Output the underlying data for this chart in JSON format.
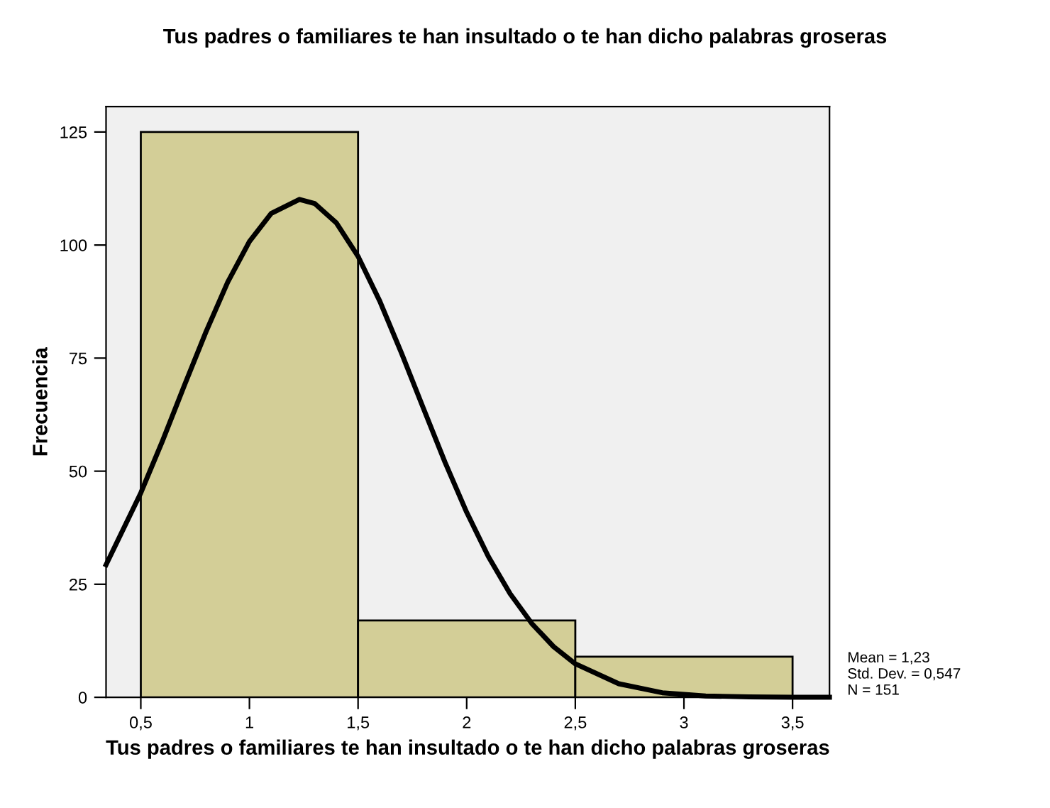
{
  "chart_data": {
    "type": "histogram",
    "title": "Tus padres o familiares te han insultado o te han dicho palabras groseras",
    "xlabel": "Tus padres o familiares te han insultado o te han dicho palabras groseras",
    "ylabel": "Frecuencia",
    "series": [
      {
        "bins": [
          0.5,
          1.5,
          2.5,
          3.5
        ],
        "values": [
          125,
          17,
          9
        ],
        "color": "#d3ce97"
      },
      {
        "type": "line",
        "color": "#000000",
        "x": [
          0.34,
          0.5,
          0.6,
          0.7,
          0.8,
          0.9,
          1.0,
          1.1,
          1.23,
          1.3,
          1.4,
          1.5,
          1.6,
          1.7,
          1.8,
          1.9,
          2.0,
          2.1,
          2.2,
          2.3,
          2.4,
          2.5,
          2.7,
          2.9,
          3.1,
          3.3,
          3.5,
          3.67
        ],
        "values": [
          29.3,
          45.2,
          56.7,
          68.9,
          80.8,
          91.8,
          100.8,
          107.0,
          110.1,
          109.2,
          104.9,
          97.5,
          87.6,
          76.1,
          64.0,
          52.0,
          40.9,
          31.1,
          22.9,
          16.3,
          11.2,
          7.4,
          3.0,
          1.0,
          0.3,
          0.1,
          0,
          0
        ]
      }
    ],
    "xlim": [
      0.34,
      3.67
    ],
    "ylim": [
      0,
      130.6
    ],
    "xticks": [
      {
        "value": 0.5,
        "label": "0,5"
      },
      1,
      {
        "value": 1.5,
        "label": "1,5"
      },
      2,
      {
        "value": 2.5,
        "label": "2,5"
      },
      3,
      {
        "value": 3.5,
        "label": "3,5"
      }
    ],
    "yticks": [
      0,
      25,
      50,
      75,
      100,
      125
    ],
    "grid": false,
    "legend": false,
    "annotations": [
      "Mean = 1,23",
      "Std. Dev. = 0,547",
      "N = 151"
    ]
  }
}
